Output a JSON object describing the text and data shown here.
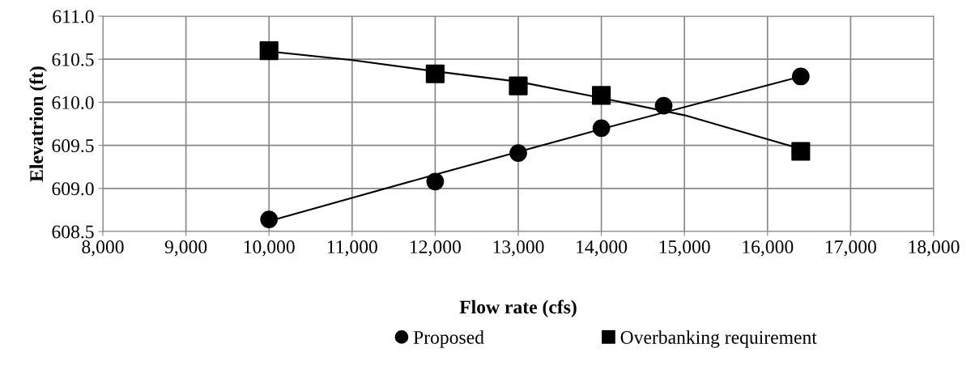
{
  "chart_data": {
    "type": "scatter",
    "xlabel": "Flow rate (cfs)",
    "ylabel": "Elevatrion (ft)",
    "xlim": [
      8000,
      18000
    ],
    "xticks": [
      {
        "value": 8000,
        "label": "8,000"
      },
      {
        "value": 9000,
        "label": "9,000"
      },
      {
        "value": 10000,
        "label": "10,000"
      },
      {
        "value": 11000,
        "label": "11,000"
      },
      {
        "value": 12000,
        "label": "12,000"
      },
      {
        "value": 13000,
        "label": "13,000"
      },
      {
        "value": 14000,
        "label": "14,000"
      },
      {
        "value": 15000,
        "label": "15,000"
      },
      {
        "value": 16000,
        "label": "16,000"
      },
      {
        "value": 17000,
        "label": "17,000"
      },
      {
        "value": 18000,
        "label": "18,000"
      }
    ],
    "ylim": [
      608.5,
      611.0
    ],
    "yticks": [
      {
        "value": 608.5,
        "label": "608.5"
      },
      {
        "value": 609.0,
        "label": "609.0"
      },
      {
        "value": 609.5,
        "label": "609.5"
      },
      {
        "value": 610.0,
        "label": "610.0"
      },
      {
        "value": 610.5,
        "label": "610.5"
      },
      {
        "value": 611.0,
        "label": "611.0"
      }
    ],
    "grid": true,
    "legend": "bottom",
    "series": [
      {
        "type": "line",
        "color": "#000000",
        "marker": "none",
        "line_style": "solid",
        "x": [
          10000,
          12000,
          14000,
          16400
        ],
        "values": [
          608.62,
          609.16,
          609.69,
          610.3
        ]
      },
      {
        "type": "line",
        "color": "#000000",
        "marker": "none",
        "line_style": "solid",
        "x": [
          10000,
          11000,
          12000,
          13000,
          14000,
          15000,
          16400
        ],
        "values": [
          610.59,
          610.49,
          610.36,
          610.24,
          610.05,
          609.85,
          609.46
        ]
      },
      {
        "name": "Proposed",
        "color": "#000000",
        "marker": "circle",
        "x": [
          10000,
          12000,
          13000,
          14000,
          14750,
          16400
        ],
        "values": [
          608.64,
          609.08,
          609.41,
          609.7,
          609.96,
          610.3
        ]
      },
      {
        "name": "Overbanking requirement",
        "color": "#000000",
        "marker": "square",
        "x": [
          10000,
          12000,
          13000,
          14000,
          16400
        ],
        "values": [
          610.6,
          610.33,
          610.19,
          610.08,
          609.43
        ]
      }
    ]
  }
}
